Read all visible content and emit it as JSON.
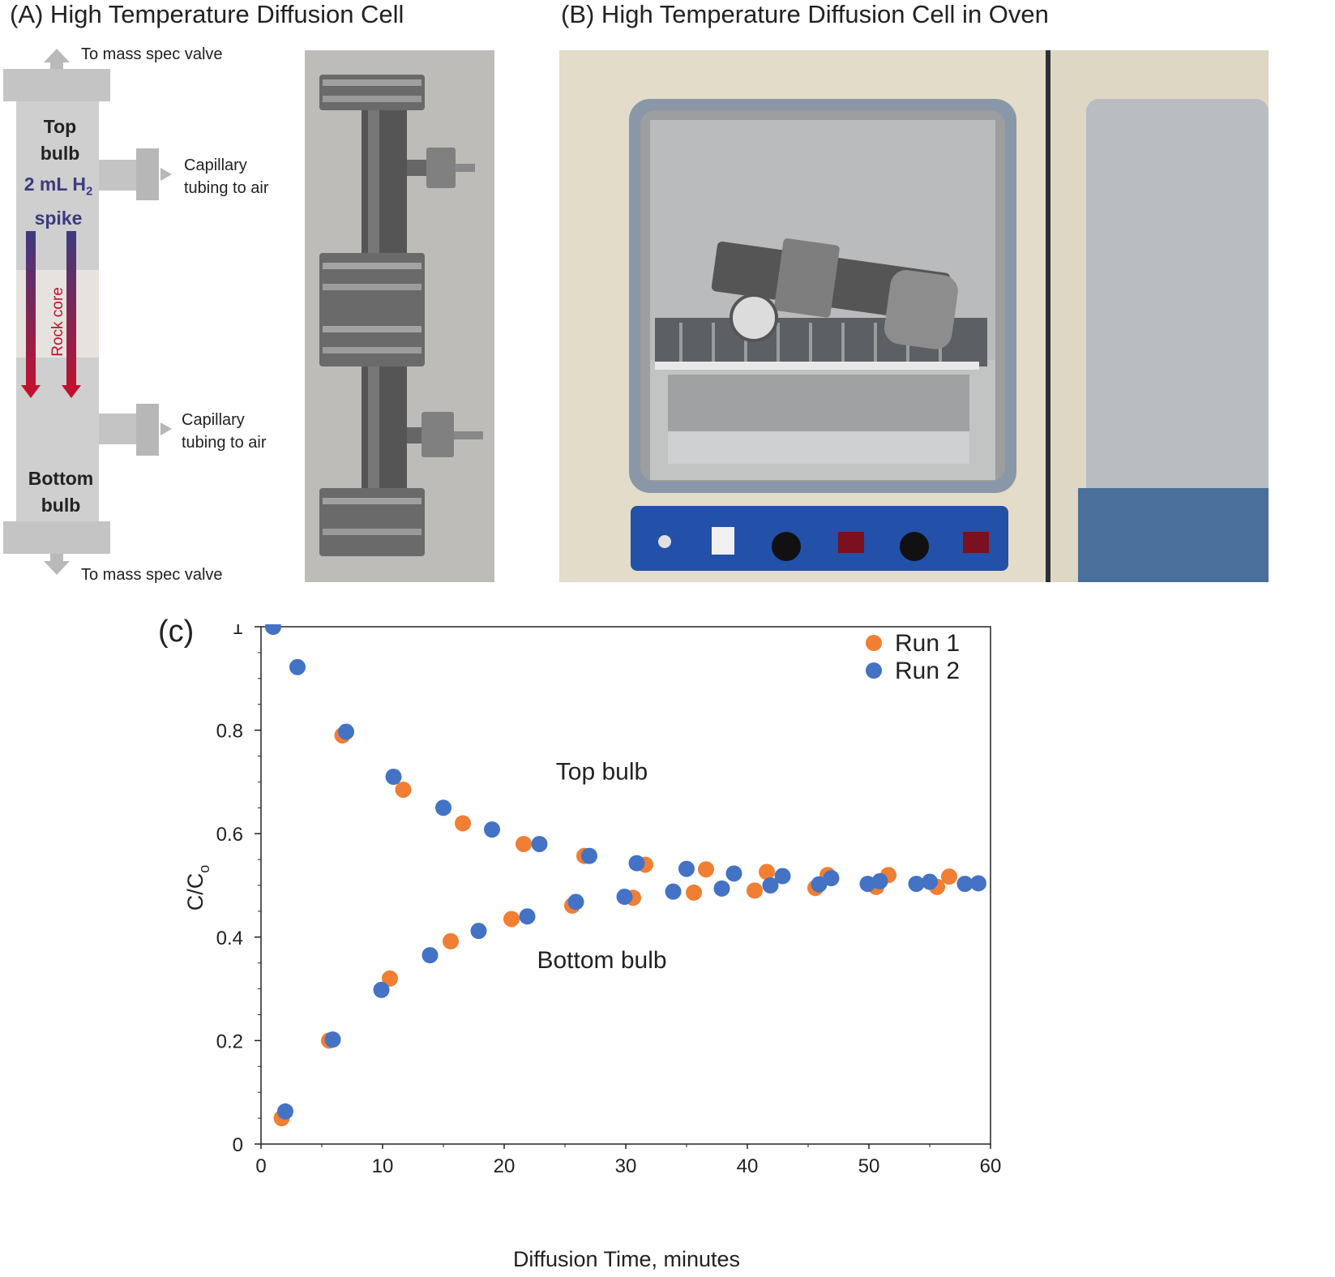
{
  "panel_a": {
    "title": "(A) High Temperature Diffusion Cell",
    "to_mass_spec_top": "To mass spec valve",
    "to_mass_spec_bottom": "To mass spec valve",
    "top_bulb": [
      "Top",
      "bulb"
    ],
    "spike_main": "2 mL H",
    "spike_sub": "2",
    "spike_word": "spike",
    "capillary_top": [
      "Capillary",
      "tubing to air"
    ],
    "capillary_bottom": [
      "Capillary",
      "tubing to air"
    ],
    "rock_core": "Rock core",
    "bottom_bulb": [
      "Bottom",
      "bulb"
    ]
  },
  "panel_b": {
    "title": "(B) High Temperature Diffusion Cell in Oven"
  },
  "panel_c": {
    "label": "(c)"
  },
  "colors": {
    "run1": "#f07f33",
    "run2": "#4472c4",
    "diagram_gray": "#c4c4c4",
    "arrow_red": "#c0122f",
    "spike_blue": "#3b3b80"
  },
  "chart_data": {
    "type": "scatter",
    "title": "",
    "xlabel": "Diffusion Time, minutes",
    "ylabel": "C/C",
    "ylabel_sub": "o",
    "xlim": [
      0,
      60
    ],
    "ylim": [
      0,
      1
    ],
    "xticks": [
      0,
      10,
      20,
      30,
      40,
      50,
      60
    ],
    "yticks": [
      0,
      0.2,
      0.4,
      0.6,
      0.8,
      1
    ],
    "ytick_labels": [
      "0",
      "0.2",
      "0.4",
      "0.6",
      "0.8",
      "1"
    ],
    "grid": false,
    "legend_position": "top-right",
    "annotations": [
      {
        "text": "Top bulb",
        "x": 25.5,
        "y": 0.72
      },
      {
        "text": "Bottom bulb",
        "x": 25.5,
        "y": 0.356
      }
    ],
    "series": [
      {
        "name": "Run 1",
        "points": [
          [
            1,
            1.0
          ],
          [
            6.7,
            0.79
          ],
          [
            11.7,
            0.685
          ],
          [
            16.6,
            0.62
          ],
          [
            21.6,
            0.58
          ],
          [
            26.6,
            0.557
          ],
          [
            31.6,
            0.54
          ],
          [
            36.6,
            0.531
          ],
          [
            41.6,
            0.526
          ],
          [
            46.6,
            0.52
          ],
          [
            51.6,
            0.52
          ],
          [
            56.6,
            0.517
          ],
          [
            1.7,
            0.05
          ],
          [
            5.6,
            0.2
          ],
          [
            10.6,
            0.32
          ],
          [
            15.6,
            0.392
          ],
          [
            20.6,
            0.435
          ],
          [
            25.6,
            0.461
          ],
          [
            30.6,
            0.476
          ],
          [
            35.6,
            0.486
          ],
          [
            40.6,
            0.49
          ],
          [
            45.6,
            0.495
          ],
          [
            50.6,
            0.497
          ],
          [
            55.6,
            0.497
          ]
        ]
      },
      {
        "name": "Run 2",
        "points": [
          [
            1,
            1.0
          ],
          [
            3,
            0.922
          ],
          [
            7,
            0.797
          ],
          [
            10.9,
            0.71
          ],
          [
            15,
            0.65
          ],
          [
            19,
            0.608
          ],
          [
            22.9,
            0.58
          ],
          [
            27,
            0.557
          ],
          [
            30.9,
            0.543
          ],
          [
            35,
            0.532
          ],
          [
            38.9,
            0.523
          ],
          [
            42.9,
            0.518
          ],
          [
            46.9,
            0.514
          ],
          [
            50.9,
            0.508
          ],
          [
            55,
            0.507
          ],
          [
            59,
            0.504
          ],
          [
            2,
            0.063
          ],
          [
            5.9,
            0.202
          ],
          [
            9.9,
            0.298
          ],
          [
            13.9,
            0.365
          ],
          [
            17.9,
            0.412
          ],
          [
            21.9,
            0.44
          ],
          [
            25.9,
            0.468
          ],
          [
            29.9,
            0.478
          ],
          [
            33.9,
            0.488
          ],
          [
            37.9,
            0.494
          ],
          [
            41.9,
            0.5
          ],
          [
            45.9,
            0.502
          ],
          [
            49.9,
            0.503
          ],
          [
            53.9,
            0.503
          ],
          [
            57.9,
            0.503
          ]
        ]
      }
    ]
  }
}
